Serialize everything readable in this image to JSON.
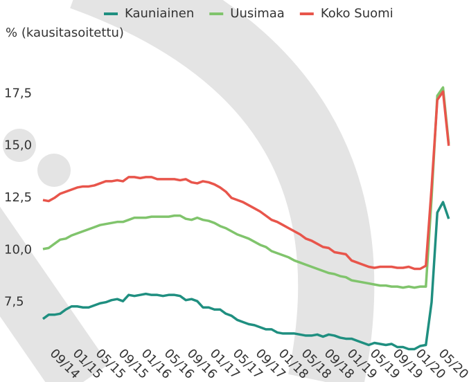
{
  "chart_data": {
    "type": "line",
    "y_label": "% (kausitasoitettu)",
    "categories": [
      null,
      null,
      null,
      "09/14",
      null,
      null,
      null,
      "01/15",
      null,
      null,
      null,
      "05/15",
      null,
      null,
      null,
      "09/15",
      null,
      null,
      null,
      "01/16",
      null,
      null,
      null,
      "05/16",
      null,
      null,
      null,
      "09/16",
      null,
      null,
      null,
      "01/17",
      null,
      null,
      null,
      "05/17",
      null,
      null,
      null,
      "09/17",
      null,
      null,
      null,
      "01/18",
      null,
      null,
      null,
      "05/18",
      null,
      null,
      null,
      "09/18",
      null,
      null,
      null,
      "01/19",
      null,
      null,
      null,
      "05/19",
      null,
      null,
      null,
      "09/19",
      null,
      null,
      null,
      "01/20",
      null,
      null,
      null,
      "05/20"
    ],
    "series": [
      {
        "name": "Kauniainen",
        "color": "#1f8f80",
        "values": [
          6.7,
          6.9,
          6.9,
          6.95,
          7.15,
          7.3,
          7.3,
          7.25,
          7.25,
          7.35,
          7.45,
          7.5,
          7.6,
          7.65,
          7.55,
          7.85,
          7.8,
          7.85,
          7.9,
          7.85,
          7.85,
          7.8,
          7.85,
          7.85,
          7.8,
          7.6,
          7.65,
          7.55,
          7.25,
          7.25,
          7.15,
          7.15,
          6.95,
          6.85,
          6.65,
          6.55,
          6.45,
          6.4,
          6.3,
          6.2,
          6.2,
          6.05,
          6.0,
          6.0,
          6.0,
          5.95,
          5.9,
          5.9,
          5.95,
          5.85,
          5.95,
          5.9,
          5.8,
          5.75,
          5.75,
          5.65,
          5.55,
          5.45,
          5.55,
          5.5,
          5.45,
          5.5,
          5.35,
          5.35,
          5.25,
          5.25,
          5.4,
          5.45,
          7.5,
          11.8,
          12.3,
          11.5
        ]
      },
      {
        "name": "Uusimaa",
        "color": "#80c46c",
        "values": [
          10.05,
          10.1,
          10.3,
          10.5,
          10.55,
          10.7,
          10.8,
          10.9,
          11.0,
          11.1,
          11.2,
          11.25,
          11.3,
          11.35,
          11.35,
          11.45,
          11.55,
          11.55,
          11.55,
          11.6,
          11.6,
          11.6,
          11.6,
          11.65,
          11.65,
          11.5,
          11.45,
          11.55,
          11.45,
          11.4,
          11.3,
          11.15,
          11.05,
          10.9,
          10.75,
          10.65,
          10.55,
          10.4,
          10.25,
          10.15,
          9.95,
          9.85,
          9.75,
          9.65,
          9.5,
          9.4,
          9.3,
          9.2,
          9.1,
          9.0,
          8.9,
          8.85,
          8.75,
          8.7,
          8.55,
          8.5,
          8.45,
          8.4,
          8.35,
          8.3,
          8.3,
          8.25,
          8.25,
          8.2,
          8.25,
          8.2,
          8.25,
          8.25,
          12.5,
          17.4,
          17.8,
          15.1
        ]
      },
      {
        "name": "Koko Suomi",
        "color": "#e8554b",
        "values": [
          12.4,
          12.35,
          12.5,
          12.7,
          12.8,
          12.9,
          13.0,
          13.05,
          13.05,
          13.1,
          13.2,
          13.3,
          13.3,
          13.35,
          13.3,
          13.5,
          13.5,
          13.45,
          13.5,
          13.5,
          13.4,
          13.4,
          13.4,
          13.4,
          13.35,
          13.4,
          13.25,
          13.2,
          13.3,
          13.25,
          13.15,
          13.0,
          12.8,
          12.5,
          12.4,
          12.3,
          12.15,
          12.0,
          11.85,
          11.65,
          11.45,
          11.35,
          11.2,
          11.05,
          10.9,
          10.75,
          10.55,
          10.45,
          10.3,
          10.15,
          10.1,
          9.9,
          9.85,
          9.8,
          9.5,
          9.4,
          9.3,
          9.2,
          9.15,
          9.2,
          9.2,
          9.2,
          9.15,
          9.15,
          9.2,
          9.1,
          9.1,
          9.25,
          13.0,
          17.2,
          17.6,
          15.0
        ]
      }
    ],
    "ylim": [
      5.4,
      20
    ],
    "yticks": [
      {
        "value": 7.5,
        "label": "7,5"
      },
      {
        "value": 10,
        "label": "10,0"
      },
      {
        "value": 12.5,
        "label": "12,5"
      },
      {
        "value": 15,
        "label": "15,0"
      },
      {
        "value": 17.5,
        "label": "17,5"
      }
    ],
    "grid": false
  }
}
